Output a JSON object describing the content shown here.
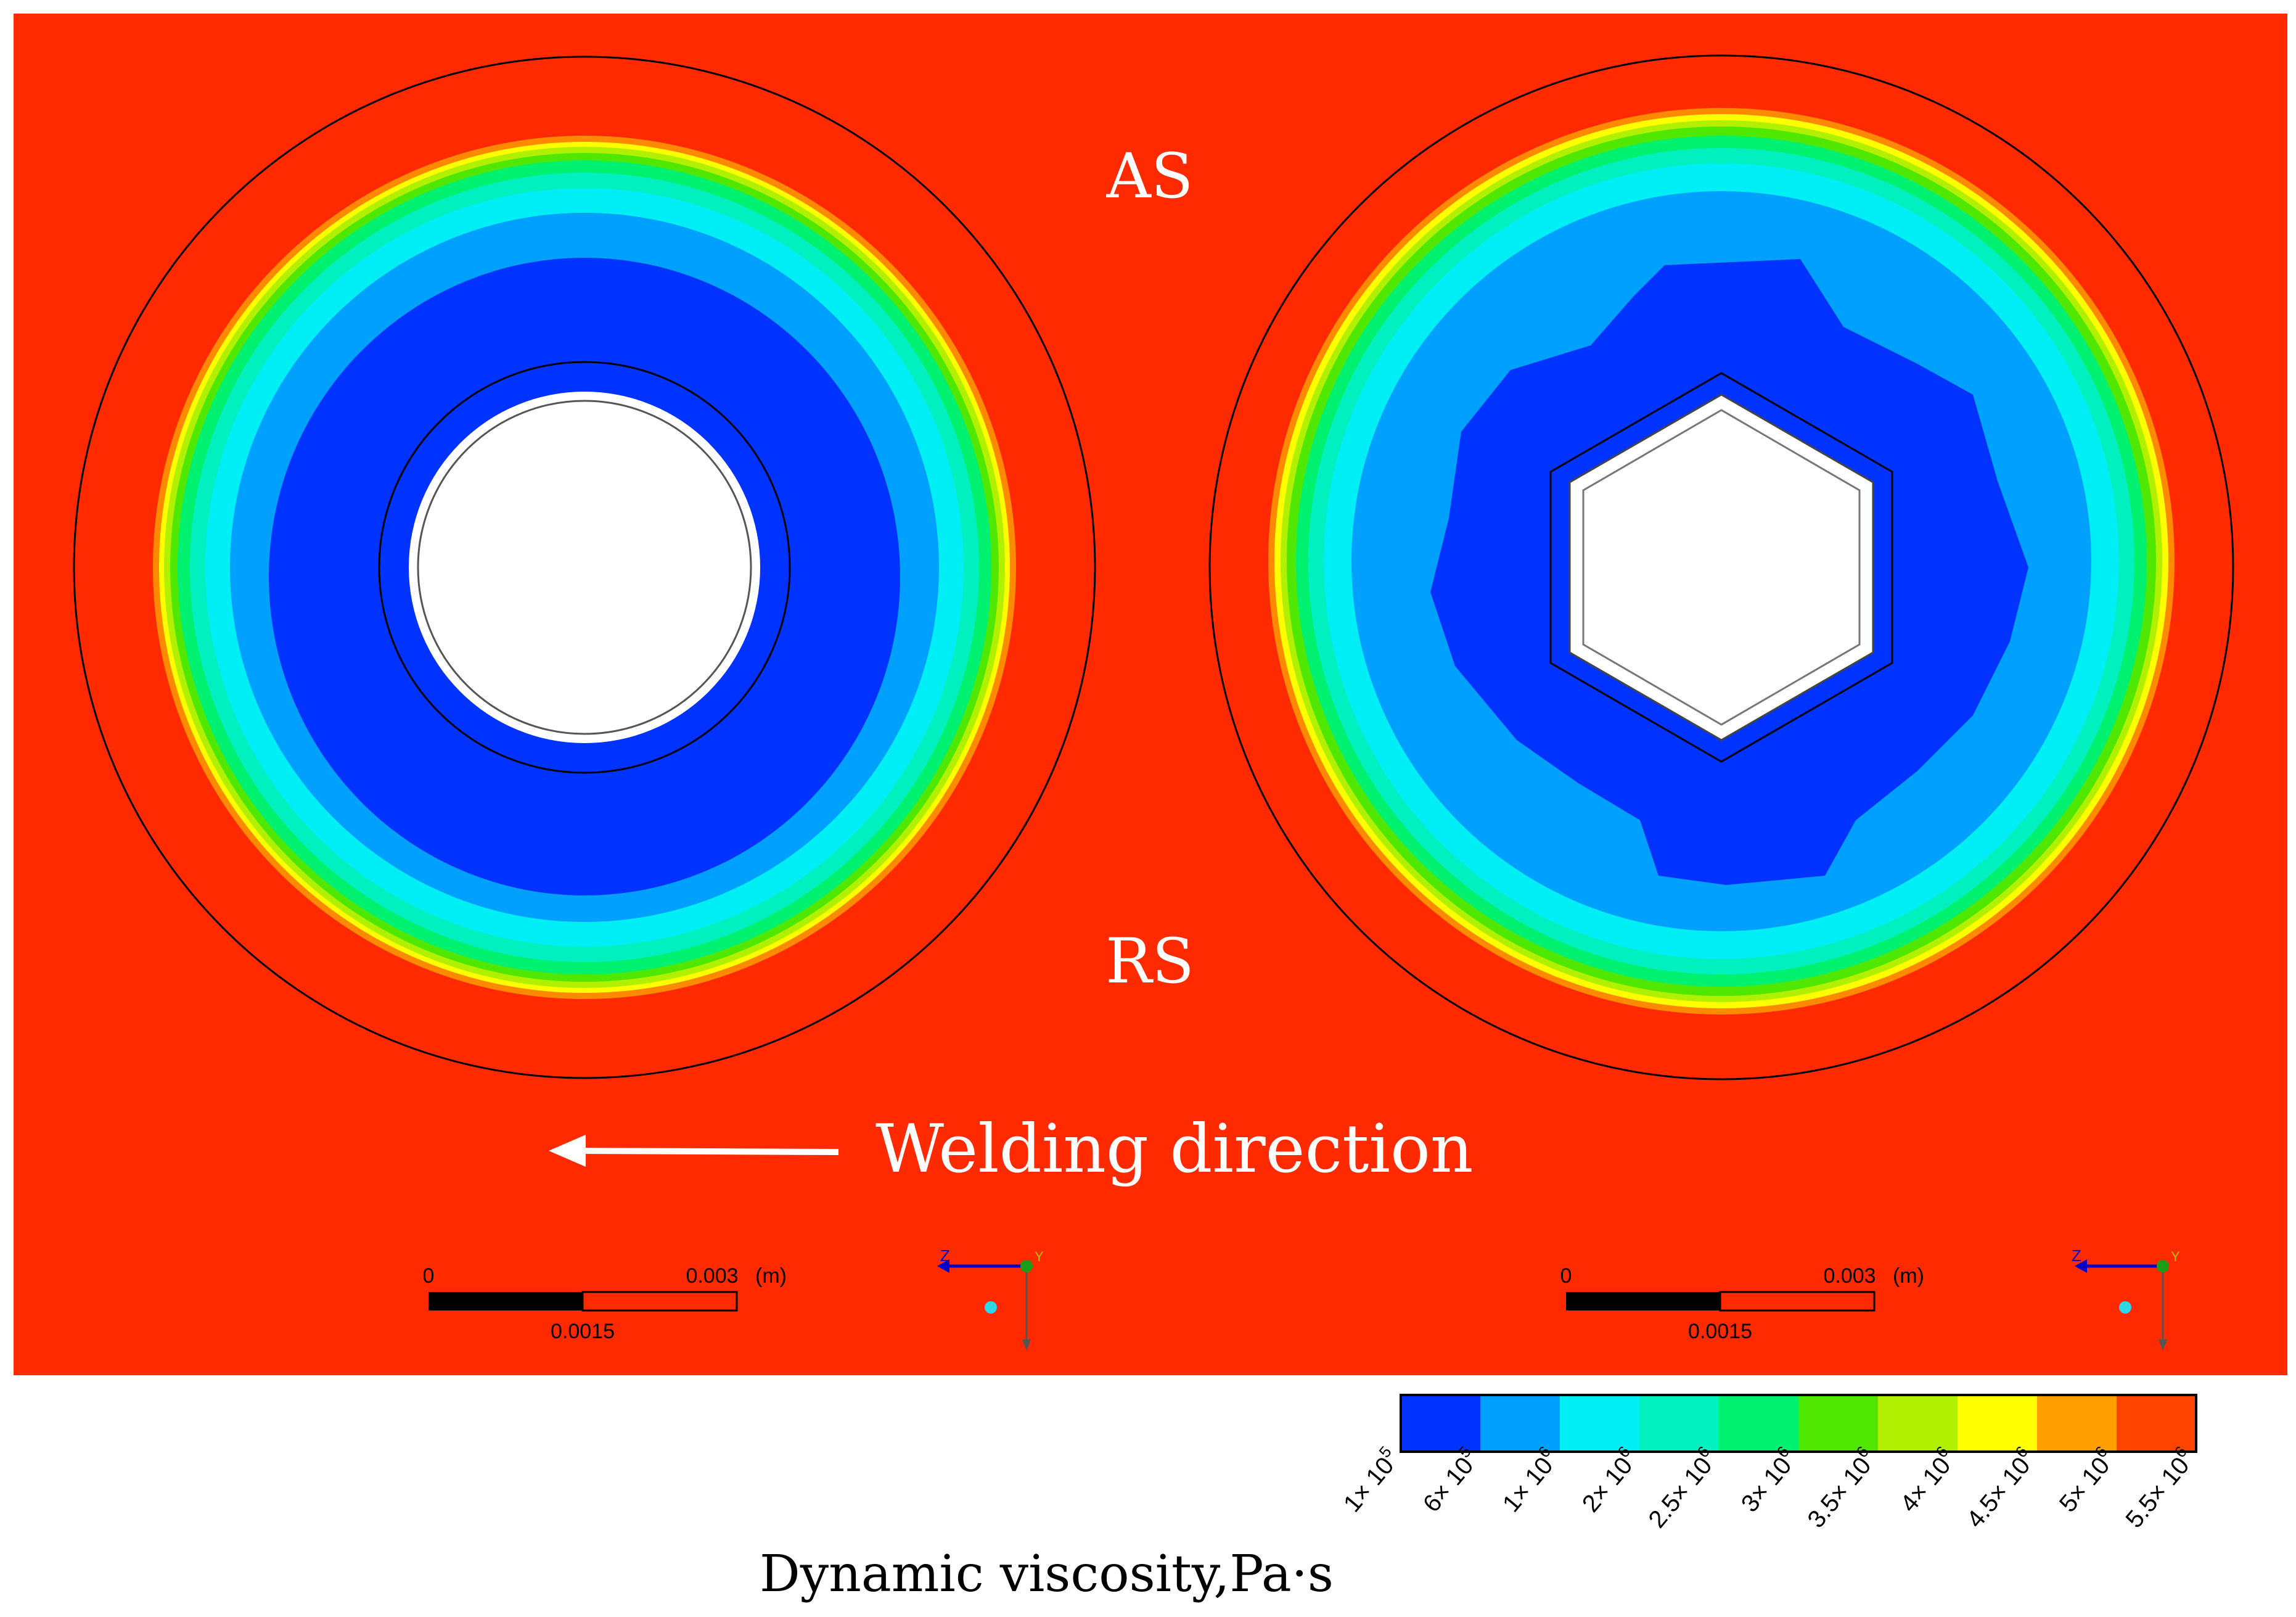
{
  "labels": {
    "advancing_side": "AS",
    "retreating_side": "RS",
    "welding_direction": "Welding direction",
    "colorbar_title": "Dynamic viscosity,Pa·s"
  },
  "colors": {
    "background_field": "#ff2a00",
    "core_white": "#ffffff",
    "outline": "#000000"
  },
  "panels": [
    {
      "pin_shape": "cylindrical",
      "scale_bar": {
        "start": "0",
        "end": "0.003",
        "unit": "(m)",
        "mid": "0.0015"
      },
      "axes_triad": {
        "z_label": "Z",
        "y_label": "Y"
      }
    },
    {
      "pin_shape": "hexagonal",
      "scale_bar": {
        "start": "0",
        "end": "0.003",
        "unit": "(m)",
        "mid": "0.0015"
      },
      "axes_triad": {
        "z_label": "Z",
        "y_label": "Y"
      }
    }
  ],
  "colorbar": {
    "ticks": [
      {
        "base": "1× 10",
        "exp": "5"
      },
      {
        "base": "6× 10",
        "exp": "5"
      },
      {
        "base": "1× 10",
        "exp": "6"
      },
      {
        "base": "2× 10",
        "exp": "6"
      },
      {
        "base": "2.5× 10",
        "exp": "6"
      },
      {
        "base": "3× 10",
        "exp": "6"
      },
      {
        "base": "3.5× 10",
        "exp": "6"
      },
      {
        "base": "4× 10",
        "exp": "6"
      },
      {
        "base": "4.5× 10",
        "exp": "6"
      },
      {
        "base": "5× 10",
        "exp": "6"
      },
      {
        "base": "5.5× 10",
        "exp": "6"
      }
    ],
    "band_colors": [
      "#0033ff",
      "#00a0ff",
      "#00eef5",
      "#00f0c0",
      "#00f070",
      "#50e800",
      "#b0f000",
      "#ffff00",
      "#ffa000",
      "#ff4400"
    ]
  }
}
